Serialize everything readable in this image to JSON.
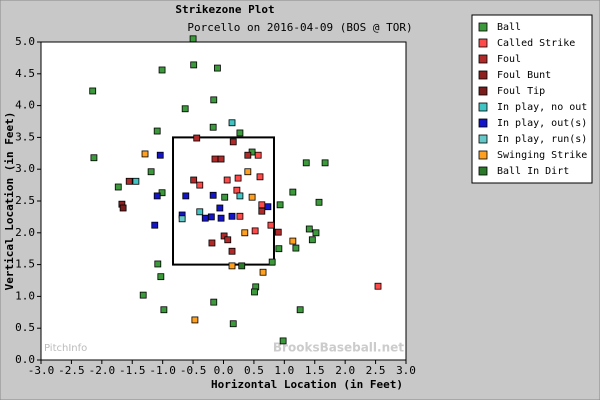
{
  "chart_data": {
    "type": "scatter",
    "title": "Strikezone Plot",
    "subtitle": "Porcello on 2016-04-09 (BOS @ TOR)",
    "x_label": "Horizontal Location (in Feet)",
    "y_label": "Vertical Location (in Feet)",
    "watermarks": [
      "PitchInfo",
      "BrooksBaseball.net"
    ],
    "xlim": [
      -3.0,
      3.0
    ],
    "ylim": [
      0.0,
      5.0
    ],
    "xticks": [
      {
        "value": -3,
        "label": "-3.0"
      },
      -2.5,
      {
        "value": -2,
        "label": "-2.0"
      },
      -1.5,
      {
        "value": -1,
        "label": "-1.0"
      },
      -0.5,
      {
        "value": 0,
        "label": "0.0"
      },
      0.5,
      {
        "value": 1,
        "label": "1.0"
      },
      1.5,
      {
        "value": 2,
        "label": "2.0"
      },
      2.5,
      {
        "value": 3,
        "label": "3.0"
      }
    ],
    "yticks": [
      {
        "value": 0,
        "label": "0.0"
      },
      0.5,
      {
        "value": 1,
        "label": "1.0"
      },
      1.5,
      {
        "value": 2,
        "label": "2.0"
      },
      2.5,
      {
        "value": 3,
        "label": "3.0"
      },
      3.5,
      {
        "value": 4,
        "label": "4.0"
      },
      4.5,
      {
        "value": 5,
        "label": "5.0"
      }
    ],
    "strike_zone": {
      "x": [
        -0.83,
        0.83
      ],
      "y": [
        1.5,
        3.5
      ]
    },
    "series": [
      {
        "name": "Ball",
        "color": "#3c9a3c",
        "x": [
          -0.5,
          -1.01,
          -0.49,
          -0.1,
          -2.15,
          -0.16,
          -0.63,
          -0.17,
          -1.09,
          0.27,
          -2.13,
          1.36,
          1.67,
          -1.19,
          -1.73,
          -1.01,
          1.14,
          1.57,
          0.93,
          1.41,
          1.52,
          1.46,
          1.19,
          -1.08,
          -1.03,
          0.91,
          0.8,
          0.53,
          0.51,
          -1.32,
          -0.16,
          -0.98,
          1.26,
          0.16,
          0.98,
          0.47,
          0.02
        ],
        "values": [
          5.05,
          4.56,
          4.64,
          4.59,
          4.23,
          4.09,
          3.95,
          3.66,
          3.6,
          3.57,
          3.18,
          3.1,
          3.1,
          2.96,
          2.72,
          2.63,
          2.64,
          2.48,
          2.44,
          2.06,
          2.0,
          1.89,
          1.76,
          1.51,
          1.31,
          1.75,
          1.54,
          1.15,
          1.07,
          1.02,
          0.91,
          0.79,
          0.79,
          0.57,
          0.3,
          3.27,
          2.56
        ]
      },
      {
        "name": "Called Strike",
        "color": "#ff4a4a",
        "x": [
          0.57,
          0.6,
          0.24,
          0.06,
          -0.39,
          0.22,
          0.63,
          0.27,
          0.78,
          0.52,
          2.54
        ],
        "values": [
          3.22,
          2.88,
          2.86,
          2.83,
          2.75,
          2.67,
          2.44,
          2.26,
          2.12,
          2.03,
          1.16
        ]
      },
      {
        "name": "Foul",
        "color": "#b02a2a",
        "x": [
          -1.55,
          -0.49,
          -0.14,
          -0.04,
          -0.19,
          0.01,
          0.07,
          0.14,
          0.63,
          0.4,
          0.16,
          -0.44,
          0.9
        ],
        "values": [
          2.81,
          2.83,
          3.16,
          3.16,
          1.84,
          1.95,
          1.89,
          1.71,
          2.34,
          3.22,
          3.43,
          3.49,
          2.01
        ]
      },
      {
        "name": "Foul Bunt",
        "color": "#8e2020",
        "x": [
          -1.67
        ],
        "values": [
          2.45
        ]
      },
      {
        "name": "Foul Tip",
        "color": "#7a1c1c",
        "x": [
          -1.65
        ],
        "values": [
          2.39
        ]
      },
      {
        "name": "In play, no out",
        "color": "#40c4c4",
        "x": [
          0.14,
          -1.44,
          -0.39,
          0.27
        ],
        "values": [
          3.73,
          2.81,
          2.33,
          2.58
        ]
      },
      {
        "name": "In play, out(s)",
        "color": "#1414c8",
        "x": [
          -1.04,
          -1.09,
          -1.13,
          -0.68,
          -0.62,
          -0.17,
          -0.06,
          -0.2,
          -0.3,
          -0.04,
          0.14,
          0.73
        ],
        "values": [
          3.22,
          2.58,
          2.12,
          2.28,
          2.58,
          2.59,
          2.39,
          2.25,
          2.23,
          2.23,
          2.26,
          2.41
        ]
      },
      {
        "name": "In play, run(s)",
        "color": "#66c8c8",
        "x": [
          -0.68
        ],
        "values": [
          2.22
        ]
      },
      {
        "name": "Swinging Strike",
        "color": "#ffa020",
        "x": [
          -1.29,
          0.47,
          0.4,
          1.14,
          0.14,
          0.35,
          -0.47,
          0.65
        ],
        "values": [
          3.24,
          2.56,
          2.96,
          1.87,
          1.48,
          2.0,
          0.63,
          1.38
        ]
      },
      {
        "name": "Ball In Dirt",
        "color": "#2a7a2a",
        "x": [
          0.3
        ],
        "values": [
          1.48
        ]
      }
    ]
  }
}
